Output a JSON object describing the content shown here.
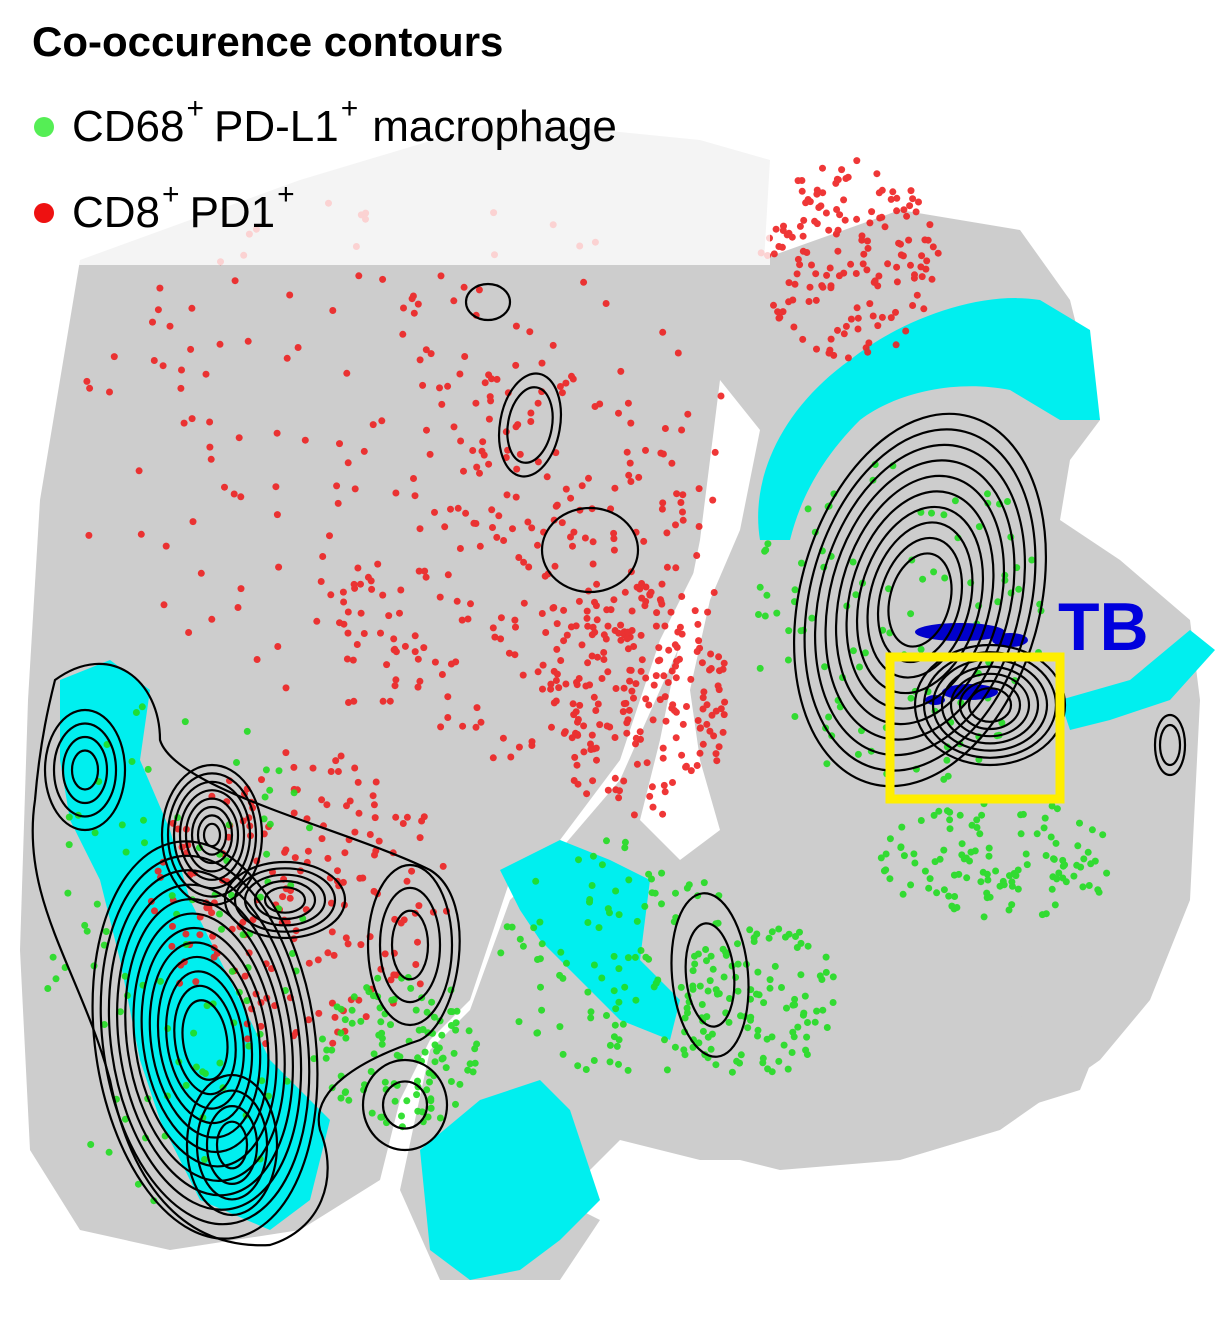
{
  "legend": {
    "title": "Co-occurence contours",
    "items": [
      {
        "marker": "CD68",
        "superscript_a": "+",
        "mid": "PD-L1",
        "superscript_b": "+",
        "suffix": "macrophage",
        "color": "#55ee55"
      },
      {
        "marker": "CD8",
        "superscript_a": "+",
        "mid": "PD1",
        "superscript_b": "+",
        "suffix": "",
        "color": "#ee1111"
      }
    ]
  },
  "annotation": {
    "label": "TB",
    "color": "#0000dd"
  },
  "highlight_box_color": "#ffee00",
  "colors": {
    "background_cells": "#c8c8c8",
    "macrophage": "#33dd33",
    "cd8": "#ee2222",
    "cyan_region": "#00f0f0",
    "contour": "#000000",
    "tb_cells": "#0000cc"
  }
}
